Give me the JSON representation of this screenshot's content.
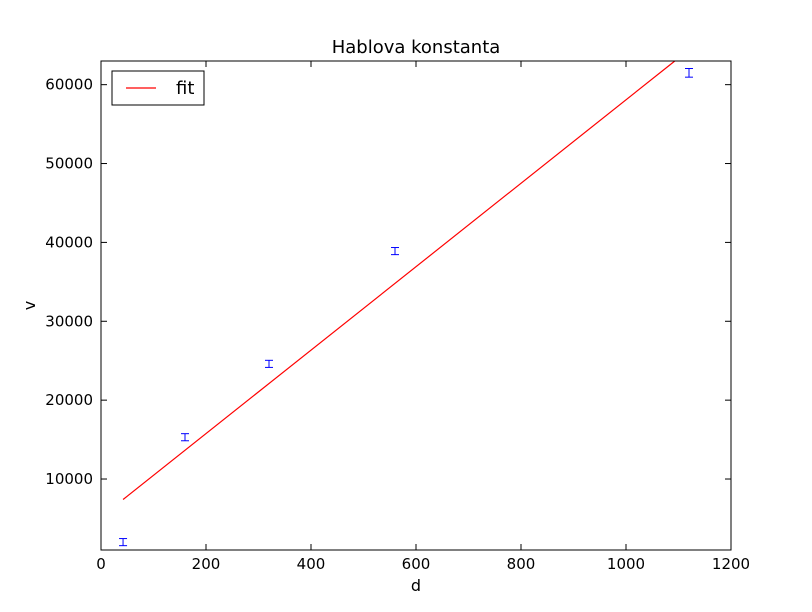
{
  "chart_data": {
    "type": "scatter",
    "title": "Hablova konstanta",
    "xlabel": "d",
    "ylabel": "v",
    "xlim": [
      0,
      1200
    ],
    "ylim": [
      1000,
      63000
    ],
    "xticks": [
      0,
      200,
      400,
      600,
      800,
      1000,
      1200
    ],
    "xtick_labels": [
      "0",
      "200",
      "400",
      "600",
      "800",
      "1000",
      "1200"
    ],
    "yticks": [
      10000,
      20000,
      30000,
      40000,
      50000,
      60000
    ],
    "ytick_labels": [
      "10000",
      "20000",
      "30000",
      "40000",
      "50000",
      "60000"
    ],
    "grid": false,
    "legend": {
      "placement": "top-left",
      "entries": [
        {
          "label": "fit",
          "color": "#ff0000"
        }
      ]
    },
    "series": [
      {
        "kind": "errorbar",
        "color": "#0000ff",
        "points": [
          {
            "x": 42,
            "y": 2000,
            "err": 450
          },
          {
            "x": 160,
            "y": 15300,
            "err": 450
          },
          {
            "x": 320,
            "y": 24600,
            "err": 450
          },
          {
            "x": 560,
            "y": 38900,
            "err": 450
          },
          {
            "x": 1120,
            "y": 61500,
            "err": 550
          }
        ]
      },
      {
        "name": "fit",
        "kind": "line",
        "color": "#ff0000",
        "x": [
          42,
          1093
        ],
        "y": [
          7400,
          63000
        ]
      }
    ]
  }
}
